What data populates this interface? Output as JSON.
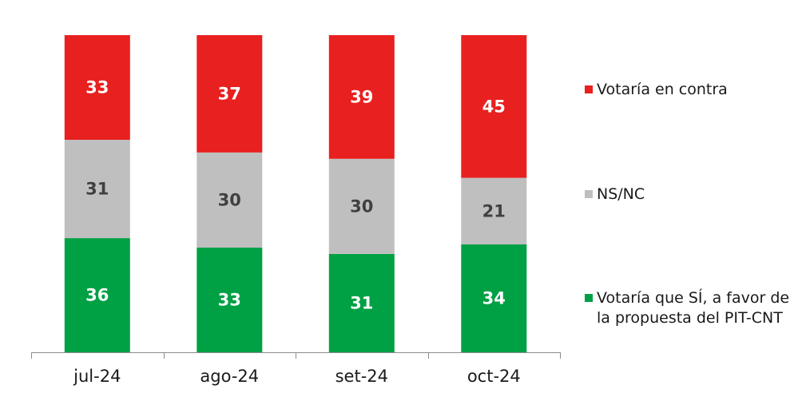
{
  "chart_data": {
    "type": "bar",
    "stacked": true,
    "categories": [
      "jul-24",
      "ago-24",
      "set-24",
      "oct-24"
    ],
    "ylim": [
      0,
      100
    ],
    "grid": false,
    "legend_position": "right",
    "series": [
      {
        "name": "Votaría que SÍ, a favor de la propuesta del PIT-CNT",
        "name_lines": [
          "Votaría que SÍ, a favor de",
          "la propuesta del PIT-CNT"
        ],
        "color": "#00a044",
        "label_color": "#ffffff",
        "values": [
          36,
          33,
          31,
          34
        ]
      },
      {
        "name": "NS/NC",
        "name_lines": [
          "NS/NC"
        ],
        "color": "#bfbfbf",
        "label_color": "#404040",
        "values": [
          31,
          30,
          30,
          21
        ]
      },
      {
        "name": "Votaría en contra",
        "name_lines": [
          "Votaría en contra"
        ],
        "color": "#e8201f",
        "label_color": "#ffffff",
        "values": [
          33,
          37,
          39,
          45
        ]
      }
    ]
  }
}
